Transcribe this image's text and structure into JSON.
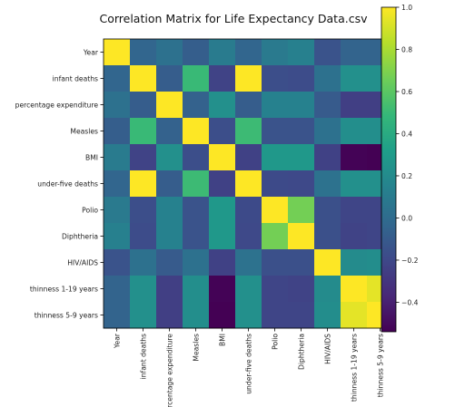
{
  "chart_data": {
    "type": "heatmap",
    "title": "Correlation Matrix for Life Expectancy Data.csv",
    "row_labels": [
      "Year",
      "infant deaths",
      "percentage expenditure",
      "Measles",
      "BMI",
      "under-five deaths",
      "Polio",
      "Diphtheria",
      "HIV/AIDS",
      "thinness  1-19 years",
      "thinness 5-9 years"
    ],
    "col_labels": [
      "Year",
      "infant deaths",
      "percentage expenditure",
      "Measles",
      "BMI",
      "under-five deaths",
      "Polio",
      "Diphtheria",
      "HIV/AIDS",
      "thinness  1-19 years",
      "thinness 5-9 years"
    ],
    "values": [
      [
        1.0,
        -0.04,
        0.03,
        -0.08,
        0.1,
        -0.04,
        0.09,
        0.13,
        -0.14,
        -0.05,
        -0.05
      ],
      [
        -0.04,
        1.0,
        -0.09,
        0.5,
        -0.23,
        1.0,
        -0.17,
        -0.18,
        0.03,
        0.23,
        0.23
      ],
      [
        0.03,
        -0.09,
        1.0,
        -0.06,
        0.23,
        -0.09,
        0.14,
        0.14,
        -0.1,
        -0.25,
        -0.25
      ],
      [
        -0.08,
        0.5,
        -0.06,
        1.0,
        -0.17,
        0.51,
        -0.14,
        -0.14,
        0.03,
        0.22,
        0.22
      ],
      [
        0.1,
        -0.23,
        0.23,
        -0.17,
        1.0,
        -0.24,
        0.28,
        0.28,
        -0.24,
        -0.53,
        -0.54
      ],
      [
        -0.04,
        1.0,
        -0.09,
        0.51,
        -0.24,
        1.0,
        -0.19,
        -0.2,
        0.04,
        0.23,
        0.23
      ],
      [
        0.09,
        -0.17,
        0.14,
        -0.14,
        0.28,
        -0.19,
        1.0,
        0.67,
        -0.16,
        -0.22,
        -0.22
      ],
      [
        0.13,
        -0.18,
        0.14,
        -0.14,
        0.28,
        -0.2,
        0.67,
        1.0,
        -0.16,
        -0.23,
        -0.22
      ],
      [
        -0.14,
        0.03,
        -0.1,
        0.03,
        -0.24,
        0.04,
        -0.16,
        -0.16,
        1.0,
        0.2,
        0.21
      ],
      [
        -0.05,
        0.23,
        -0.25,
        0.22,
        -0.53,
        0.23,
        -0.22,
        -0.23,
        0.2,
        1.0,
        0.94
      ],
      [
        -0.05,
        0.23,
        -0.25,
        0.22,
        -0.54,
        0.23,
        -0.22,
        -0.22,
        0.21,
        0.94,
        1.0
      ]
    ],
    "vmin": -0.54,
    "vmax": 1.0,
    "colormap": "viridis",
    "colorbar_ticks": [
      -0.4,
      -0.2,
      0.0,
      0.2,
      0.4,
      0.6,
      0.8,
      1.0
    ],
    "colorbar_tick_labels": [
      "−0.4",
      "−0.2",
      "0.0",
      "0.2",
      "0.4",
      "0.6",
      "0.8",
      "1.0"
    ],
    "grid": false,
    "legend": "colorbar-right"
  }
}
